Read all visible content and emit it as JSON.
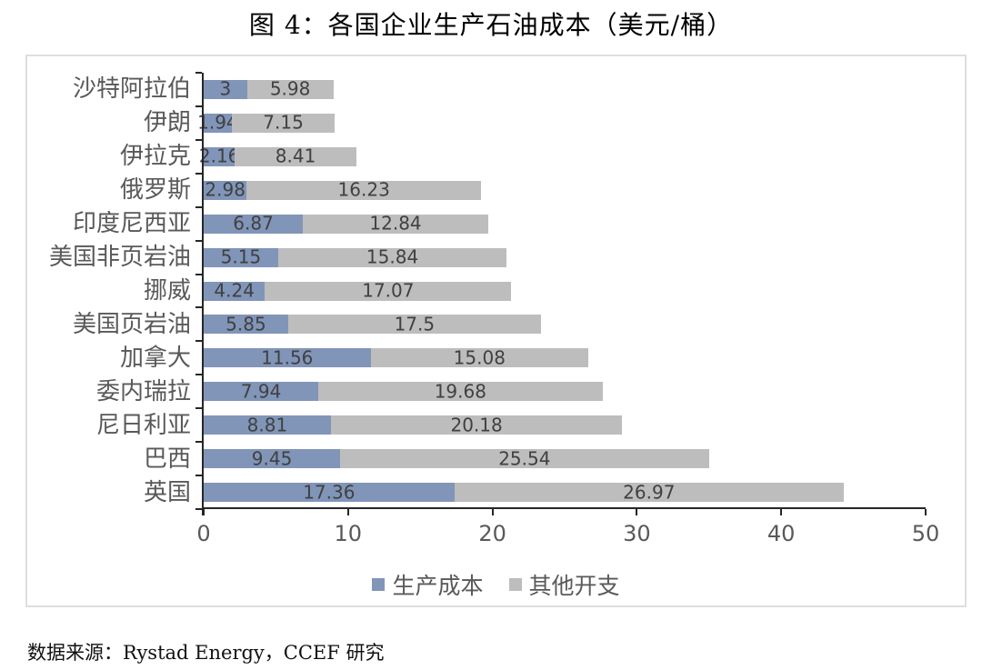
{
  "page": {
    "title": "图 4：各国企业生产石油成本（美元/桶）",
    "source": "数据来源：Rystad Energy，CCEF 研究"
  },
  "chart_data": {
    "type": "bar",
    "orientation": "horizontal",
    "stacked": true,
    "title": "图 4：各国企业生产石油成本（美元/桶）",
    "categories": [
      "沙特阿拉伯",
      "伊朗",
      "伊拉克",
      "俄罗斯",
      "印度尼西亚",
      "美国非页岩油",
      "挪威",
      "美国页岩油",
      "加拿大",
      "委内瑞拉",
      "尼日利亚",
      "巴西",
      "英国"
    ],
    "series": [
      {
        "name": "生产成本",
        "color": "#8095b8",
        "values": [
          3,
          1.94,
          2.16,
          2.98,
          6.87,
          5.15,
          4.24,
          5.85,
          11.56,
          7.94,
          8.81,
          9.45,
          17.36
        ]
      },
      {
        "name": "其他开支",
        "color": "#bdbdbd",
        "values": [
          5.98,
          7.15,
          8.41,
          16.23,
          12.84,
          15.84,
          17.07,
          17.5,
          15.08,
          19.68,
          20.18,
          25.54,
          26.97
        ]
      }
    ],
    "xlabel": "",
    "ylabel": "",
    "xlim": [
      0,
      50
    ],
    "xticks": [
      0,
      10,
      20,
      30,
      40,
      50
    ],
    "grid": false,
    "legend_position": "bottom",
    "data_labels": true
  },
  "colors": {
    "axis": "#262626",
    "category_text": "#595959",
    "tick_text": "#595959",
    "value_text": "#404040",
    "frame_border": "#dedede"
  }
}
